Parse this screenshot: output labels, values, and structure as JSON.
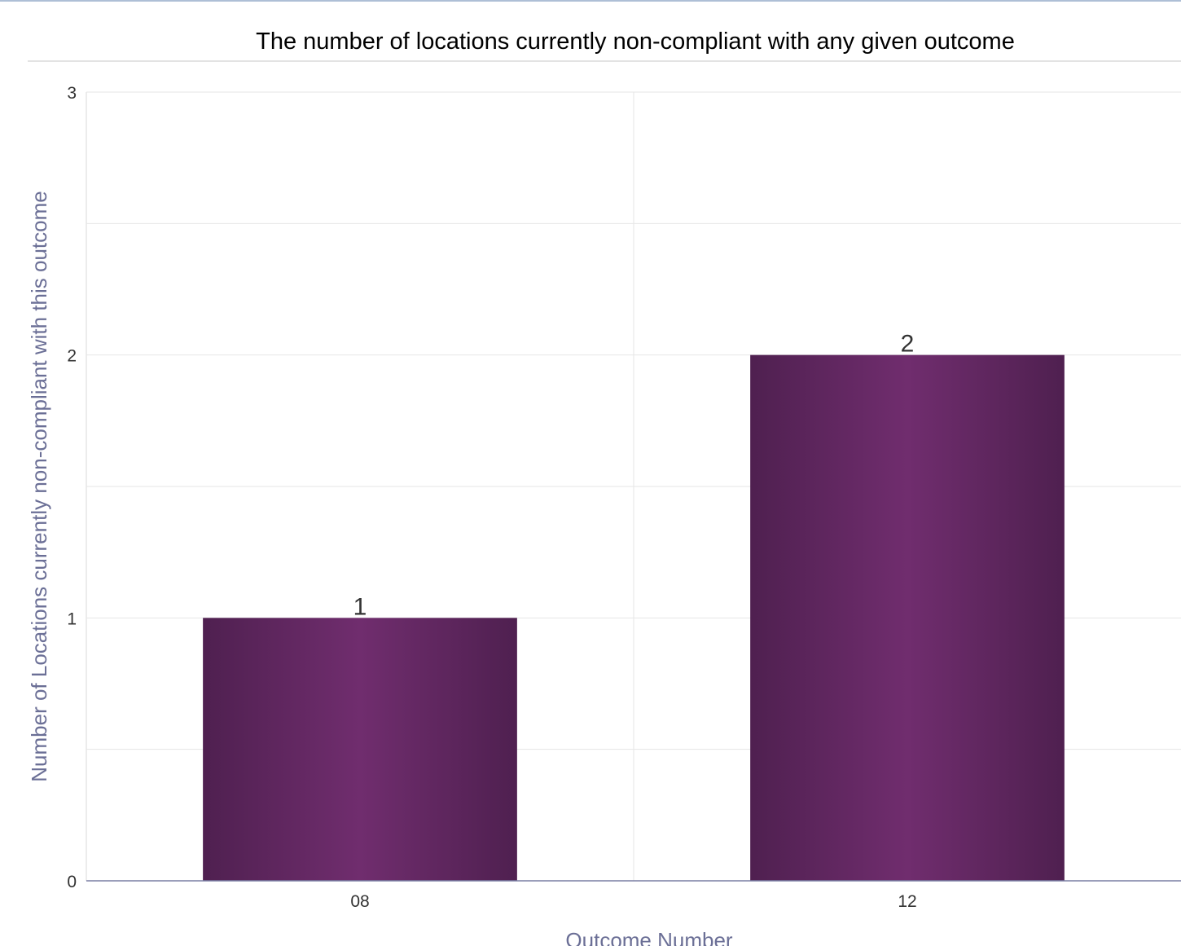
{
  "chart_data": {
    "type": "bar",
    "title": "The number of locations currently non-compliant with any given outcome",
    "xlabel": "Outcome Number",
    "ylabel": "Number of Locations currently non-compliant with this outcome",
    "categories": [
      "08",
      "12"
    ],
    "values": [
      1,
      2
    ],
    "data_labels": [
      "1",
      "2"
    ],
    "ylim": [
      0,
      3
    ],
    "yticks": [
      0,
      1,
      2,
      3
    ],
    "grid": true,
    "colors": {
      "bar_dark": "#4f2050",
      "bar_light": "#702d6e",
      "title": "#000000",
      "axis_title": "#6b6f96",
      "tick_label": "#333333",
      "data_label": "#333333",
      "grid": "#e6e6e6",
      "axis_line": "#7a7fa3"
    }
  }
}
